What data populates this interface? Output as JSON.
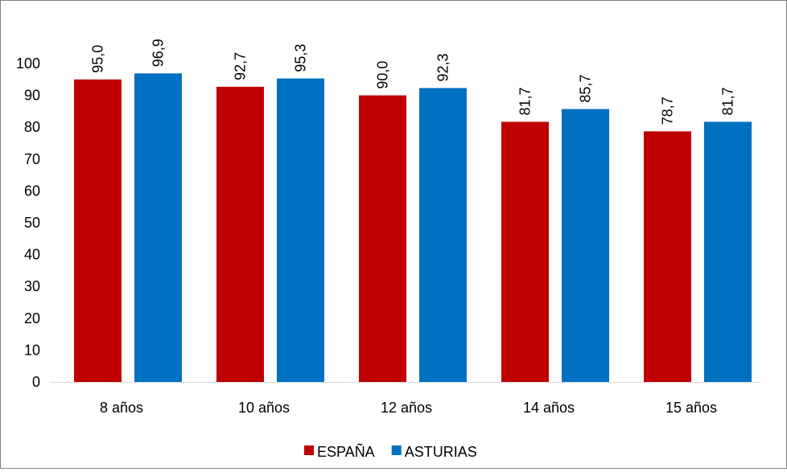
{
  "chart_data": {
    "type": "bar",
    "title": "",
    "xlabel": "",
    "ylabel": "",
    "categories": [
      "8 años",
      "10 años",
      "12 años",
      "14 años",
      "15 años"
    ],
    "series": [
      {
        "name": "ESPAÑA",
        "color": "#C00000",
        "values": [
          95.0,
          92.7,
          90.0,
          81.7,
          78.7
        ],
        "labels": [
          "95,0",
          "92,7",
          "90,0",
          "81,7",
          "78,7"
        ]
      },
      {
        "name": "ASTURIAS",
        "color": "#0070C0",
        "values": [
          96.9,
          95.3,
          92.3,
          85.7,
          81.7
        ],
        "labels": [
          "96,9",
          "95,3",
          "92,3",
          "85,7",
          "81,7"
        ]
      }
    ],
    "ylim": [
      0,
      100
    ],
    "yticks": [
      "0",
      "10",
      "20",
      "30",
      "40",
      "50",
      "60",
      "70",
      "80",
      "90",
      "100"
    ],
    "grid": false,
    "legend": "bottom-center"
  }
}
